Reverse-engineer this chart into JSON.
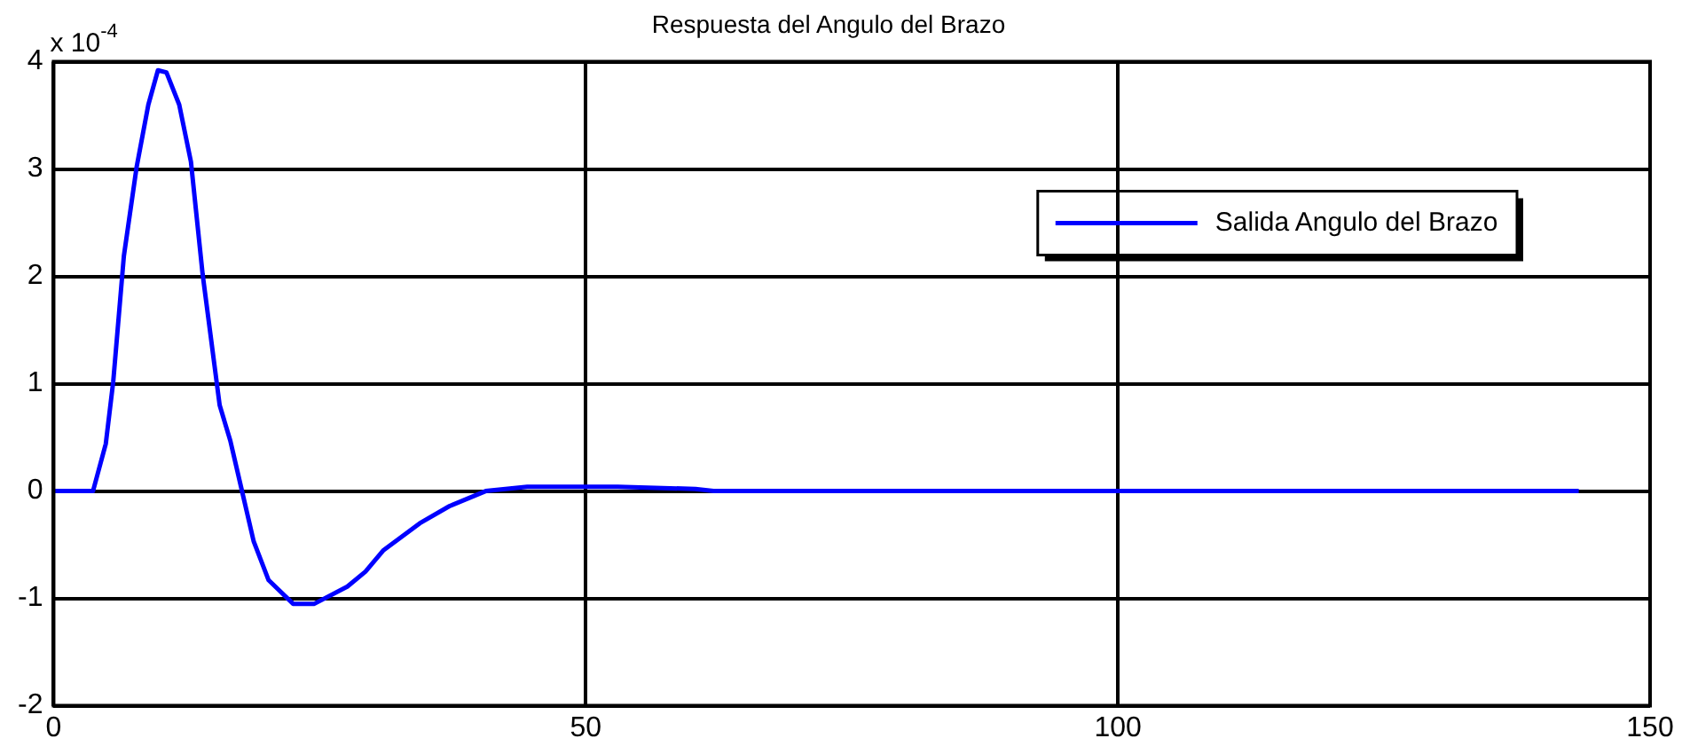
{
  "chart_data": {
    "type": "line",
    "title": "Respuesta del Angulo del Brazo",
    "annotations": [
      "x 10$^{-4}$"
    ],
    "series": [
      {
        "name": "Salida Angulo del Brazo",
        "color": "#0000ff",
        "x": [
          0,
          3.7,
          4.9,
          5.6,
          6.6,
          7.8,
          8.9,
          9.8,
          10.6,
          11.8,
          12.9,
          14.0,
          15.6,
          16.6,
          17.7,
          18.8,
          20.2,
          22.5,
          24.5,
          27.6,
          29.3,
          31,
          34.4,
          37.2,
          40.6,
          44.5,
          53,
          60.3,
          62,
          143.3
        ],
        "values": [
          0,
          0,
          0.44,
          1.02,
          2.19,
          3.02,
          3.6,
          3.92,
          3.9,
          3.6,
          3.07,
          2.02,
          0.8,
          0.47,
          0,
          -0.47,
          -0.83,
          -1.05,
          -1.05,
          -0.89,
          -0.75,
          -0.55,
          -0.3,
          -0.14,
          0,
          0.04,
          0.04,
          0.02,
          0,
          0
        ]
      }
    ],
    "xlim": [
      0,
      150
    ],
    "xticks": [
      0,
      50,
      100,
      150
    ],
    "ylim": [
      -2,
      4
    ],
    "yticks": [
      -2,
      -1,
      0,
      1,
      2,
      3,
      4
    ],
    "grid": true,
    "legend": "top right",
    "marker": "none",
    "line_style": "solid"
  }
}
